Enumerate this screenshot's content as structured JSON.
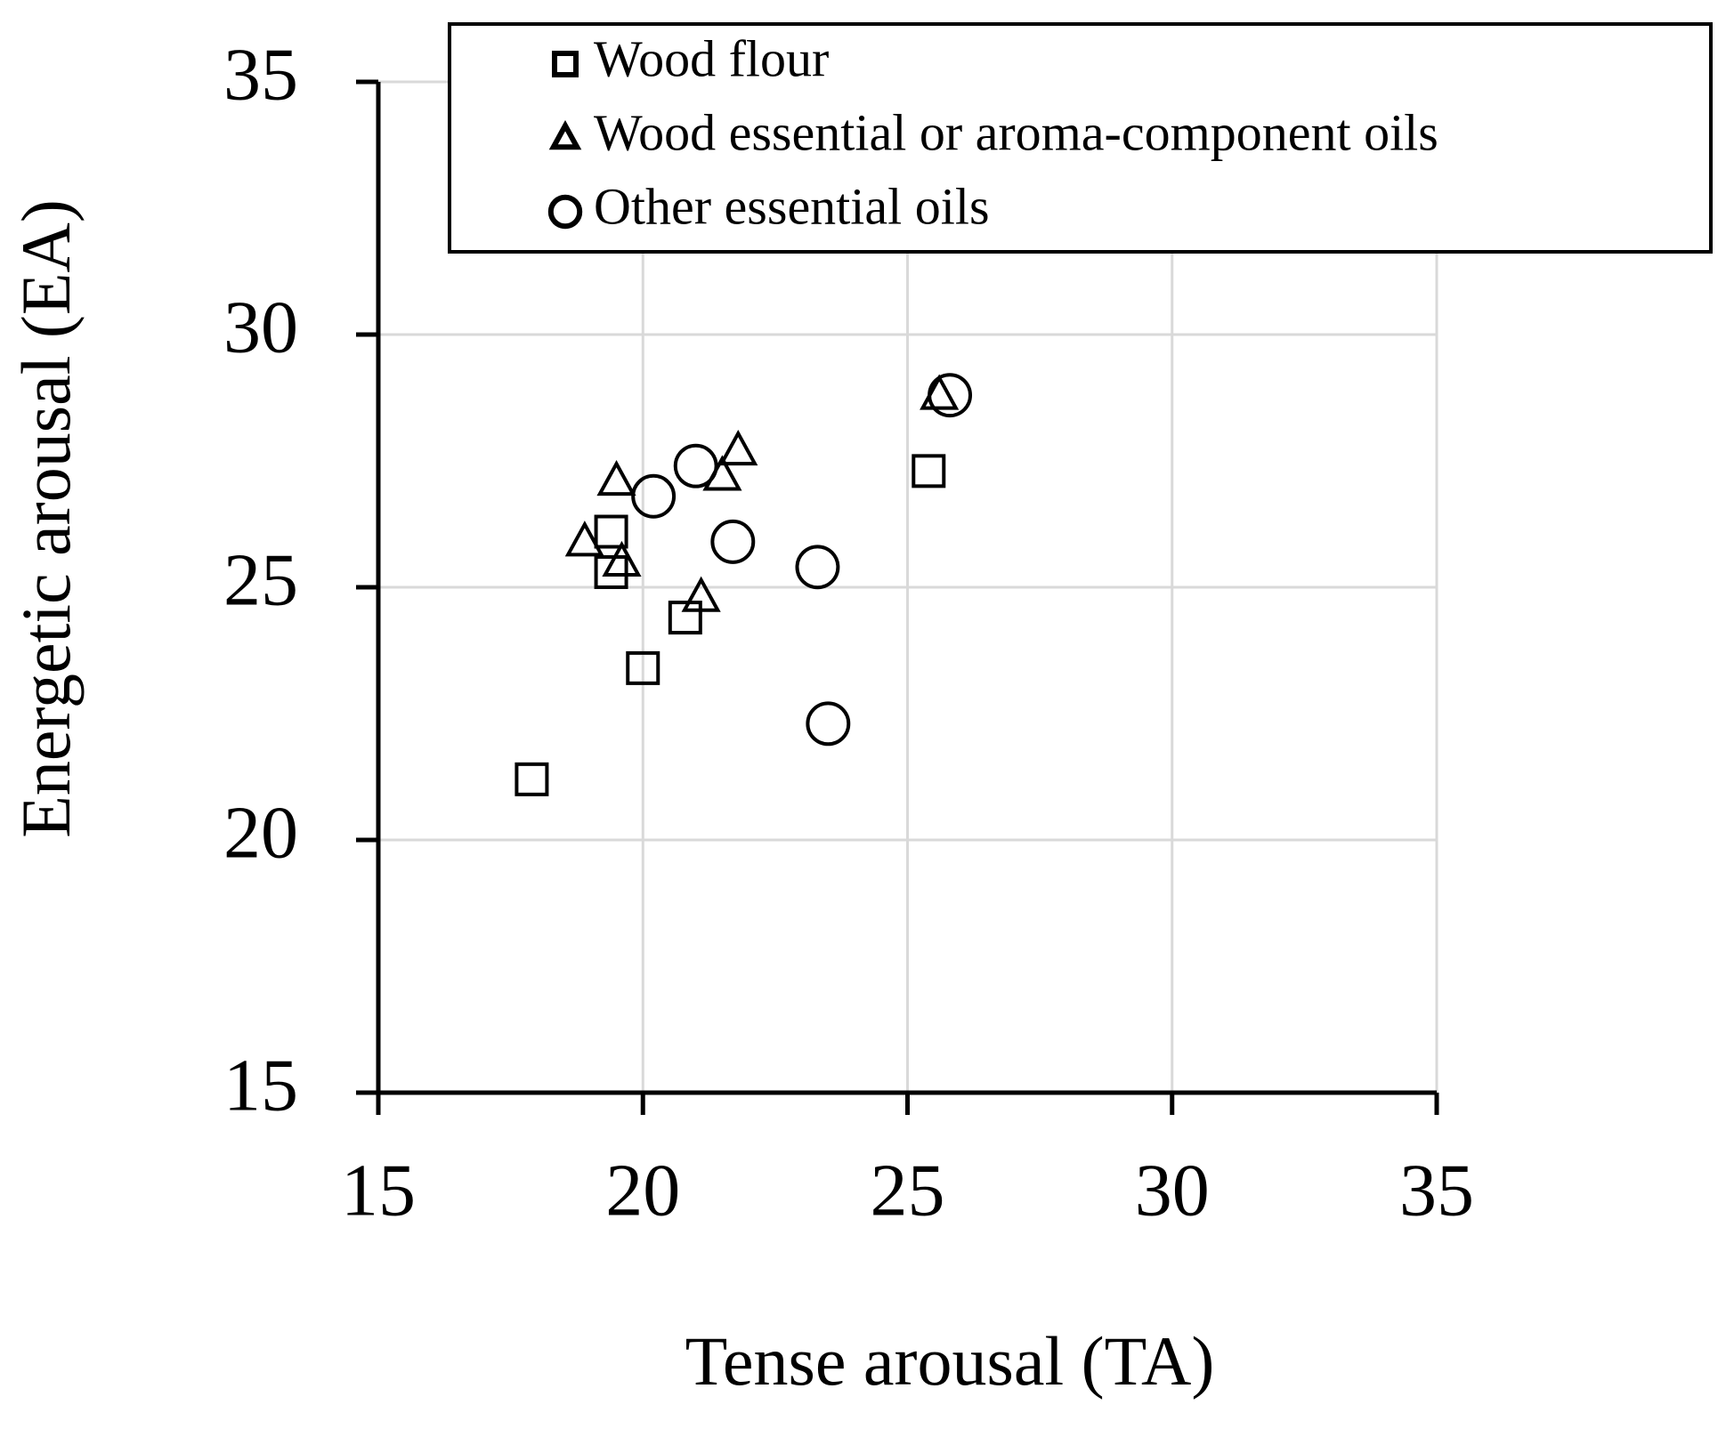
{
  "chart_data": {
    "type": "scatter",
    "xlabel": "Tense arousal (TA)",
    "ylabel": "Energetic arousal (EA)",
    "xlim": [
      15,
      35
    ],
    "ylim": [
      15,
      35
    ],
    "xticks": [
      15,
      20,
      25,
      30,
      35
    ],
    "yticks": [
      15,
      20,
      25,
      30,
      35
    ],
    "grid": true,
    "legend": "top",
    "series": [
      {
        "name": "Wood flour",
        "color": "#000000",
        "marker": "square",
        "x": [
          17.9,
          20.0,
          19.4,
          19.4,
          20.8,
          25.4
        ],
        "values": [
          21.2,
          23.4,
          26.1,
          25.3,
          24.4,
          27.3
        ]
      },
      {
        "name": "Wood essential or aroma-component oils",
        "color": "#000000",
        "marker": "triangle",
        "x": [
          18.9,
          19.5,
          19.6,
          21.1,
          21.5,
          21.8,
          25.6
        ],
        "values": [
          25.9,
          27.1,
          25.5,
          24.8,
          27.2,
          27.7,
          28.8
        ]
      },
      {
        "name": "Other essential oils",
        "color": "#000000",
        "marker": "circle",
        "x": [
          20.2,
          21.0,
          21.7,
          23.3,
          23.5,
          25.8
        ],
        "values": [
          26.8,
          27.4,
          25.9,
          25.4,
          22.3,
          28.8
        ]
      }
    ]
  }
}
